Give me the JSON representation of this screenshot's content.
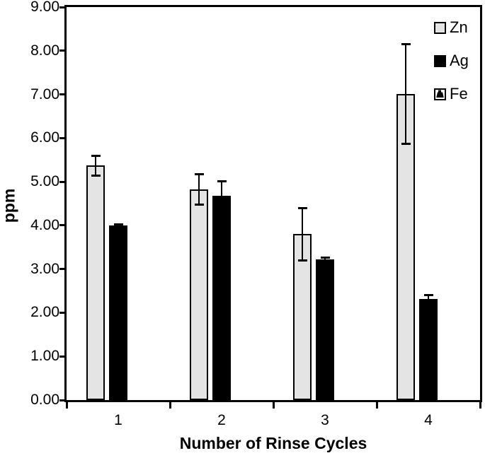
{
  "figure": {
    "background": "#ffffff",
    "text_color": "#000000"
  },
  "chart_data": {
    "type": "bar",
    "title": "",
    "xlabel": "Number of Rinse Cycles",
    "ylabel": "ppm",
    "categories": [
      "1",
      "2",
      "3",
      "4"
    ],
    "series": [
      {
        "name": "Zn",
        "values": [
          5.37,
          4.82,
          3.8,
          7.01
        ],
        "errors": [
          0.25,
          0.37,
          0.62,
          1.17
        ],
        "fill": "#e4e4e4",
        "border": "#000000",
        "marker": "light-gray-square"
      },
      {
        "name": "Ag",
        "values": [
          4.0,
          4.68,
          3.22,
          2.31
        ],
        "errors": [
          0.04,
          0.35,
          0.06,
          0.11
        ],
        "fill": "#000000",
        "border": "#000000",
        "marker": "black-square"
      },
      {
        "name": "Fe",
        "values": [
          0,
          0,
          0,
          0
        ],
        "errors": [
          0,
          0,
          0,
          0
        ],
        "fill": "#ffffff",
        "border": "#000000",
        "marker": "white-square-black-weight-pattern"
      }
    ],
    "ylim": [
      0,
      9
    ],
    "ytick_step": 1,
    "yticks": [
      "0.00",
      "1.00",
      "2.00",
      "3.00",
      "4.00",
      "5.00",
      "6.00",
      "7.00",
      "8.00",
      "9.00"
    ],
    "grid": false,
    "legend_position": "top-right-inside",
    "error_bars": true
  }
}
